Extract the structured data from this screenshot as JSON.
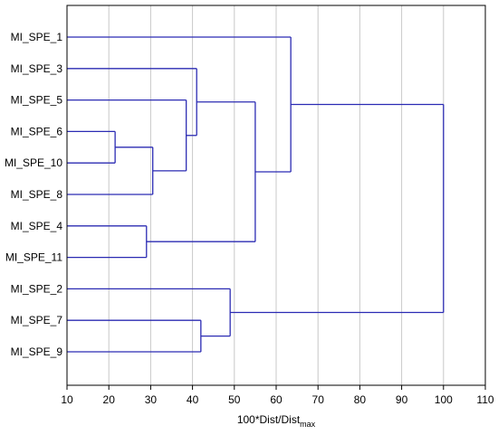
{
  "chart_data": {
    "type": "dendrogram",
    "orientation": "horizontal",
    "xlabel": "100*Dist/Dist",
    "xlabel_subscript": "max",
    "xlim": [
      10,
      110
    ],
    "xticks": [
      10,
      20,
      30,
      40,
      50,
      60,
      70,
      80,
      90,
      100,
      110
    ],
    "grid": "vertical",
    "leaves": [
      "MI_SPE_1",
      "MI_SPE_3",
      "MI_SPE_5",
      "MI_SPE_6",
      "MI_SPE_10",
      "MI_SPE_8",
      "MI_SPE_4",
      "MI_SPE_11",
      "MI_SPE_2",
      "MI_SPE_7",
      "MI_SPE_9"
    ],
    "merges": [
      {
        "left": "MI_SPE_6",
        "right": "MI_SPE_10",
        "distance": 21.5
      },
      {
        "left": "MI_SPE_4",
        "right": "MI_SPE_11",
        "distance": 29
      },
      {
        "left": "MI_SPE_6+MI_SPE_10",
        "right": "MI_SPE_8",
        "distance": 30.5
      },
      {
        "left": "MI_SPE_5",
        "right": "MI_SPE_6+MI_SPE_10+MI_SPE_8",
        "distance": 38.5
      },
      {
        "left": "MI_SPE_3",
        "right": "MI_SPE_5+MI_SPE_6+MI_SPE_10+MI_SPE_8",
        "distance": 41
      },
      {
        "left": "MI_SPE_7",
        "right": "MI_SPE_9",
        "distance": 42
      },
      {
        "left": "MI_SPE_2",
        "right": "MI_SPE_7+MI_SPE_9",
        "distance": 49
      },
      {
        "left": "MI_SPE_3+MI_SPE_5+MI_SPE_6+MI_SPE_10+MI_SPE_8",
        "right": "MI_SPE_4+MI_SPE_11",
        "distance": 55
      },
      {
        "left": "MI_SPE_1",
        "right": "MI_SPE_3+MI_SPE_5+MI_SPE_6+MI_SPE_10+MI_SPE_8+MI_SPE_4+MI_SPE_11",
        "distance": 63.5
      },
      {
        "left": "MI_SPE_1+MI_SPE_3+MI_SPE_5+MI_SPE_6+MI_SPE_10+MI_SPE_8+MI_SPE_4+MI_SPE_11",
        "right": "MI_SPE_2+MI_SPE_7+MI_SPE_9",
        "distance": 100
      }
    ],
    "colors": {
      "lines": "#2b2bb3",
      "grid": "#c8c8c8",
      "frame": "#000000"
    }
  }
}
